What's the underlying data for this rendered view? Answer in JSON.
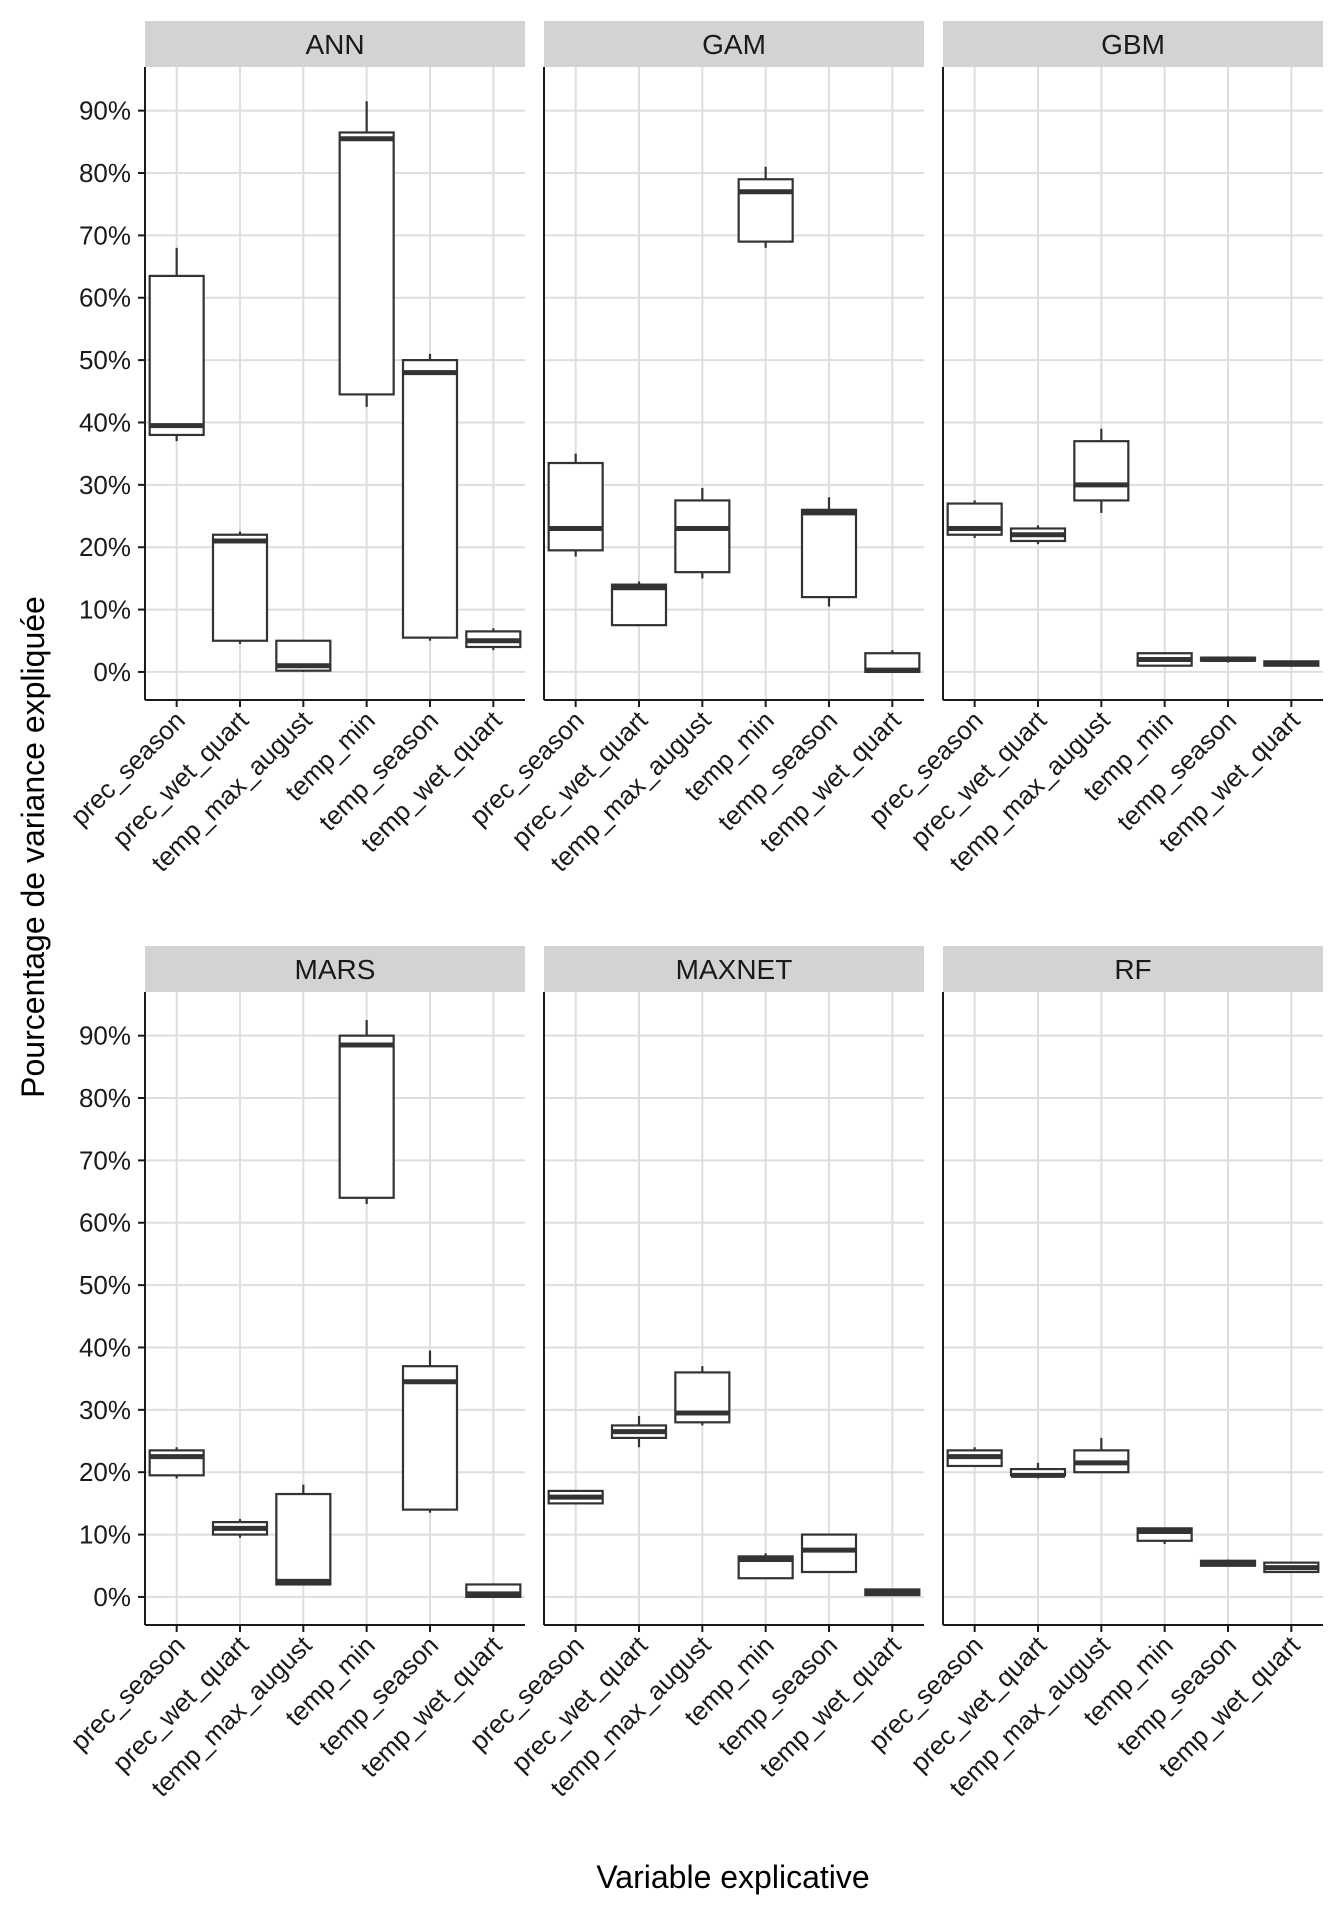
{
  "chart_data": {
    "type": "boxplot",
    "xlabel": "Variable explicative",
    "ylabel": "Pourcentage de variance expliquée",
    "ylim": [
      -4.5,
      97
    ],
    "y_ticks": [
      0,
      10,
      20,
      30,
      40,
      50,
      60,
      70,
      80,
      90
    ],
    "y_tick_labels": [
      "0%",
      "10%",
      "20%",
      "30%",
      "40%",
      "50%",
      "60%",
      "70%",
      "80%",
      "90%"
    ],
    "categories": [
      "prec_season",
      "prec_wet_quart",
      "temp_max_august",
      "temp_min",
      "temp_season",
      "temp_wet_quart"
    ],
    "panels": [
      {
        "name": "ANN",
        "boxes": [
          {
            "min": 37.0,
            "q1": 38.0,
            "median": 39.5,
            "q3": 63.5,
            "max": 68.0
          },
          {
            "min": 4.5,
            "q1": 5.0,
            "median": 21.0,
            "q3": 22.0,
            "max": 22.5
          },
          {
            "min": 0.0,
            "q1": 0.2,
            "median": 1.0,
            "q3": 5.0,
            "max": 5.0
          },
          {
            "min": 42.5,
            "q1": 44.5,
            "median": 85.5,
            "q3": 86.5,
            "max": 91.5
          },
          {
            "min": 5.0,
            "q1": 5.5,
            "median": 48.0,
            "q3": 50.0,
            "max": 51.0
          },
          {
            "min": 3.5,
            "q1": 4.0,
            "median": 5.0,
            "q3": 6.5,
            "max": 7.0
          }
        ]
      },
      {
        "name": "GAM",
        "boxes": [
          {
            "min": 18.5,
            "q1": 19.5,
            "median": 23.0,
            "q3": 33.5,
            "max": 35.0
          },
          {
            "min": 7.5,
            "q1": 7.5,
            "median": 13.5,
            "q3": 14.0,
            "max": 14.5
          },
          {
            "min": 15.0,
            "q1": 16.0,
            "median": 23.0,
            "q3": 27.5,
            "max": 29.5
          },
          {
            "min": 68.0,
            "q1": 69.0,
            "median": 77.0,
            "q3": 79.0,
            "max": 81.0
          },
          {
            "min": 10.5,
            "q1": 12.0,
            "median": 25.5,
            "q3": 26.0,
            "max": 28.0
          },
          {
            "min": 0.0,
            "q1": 0.0,
            "median": 0.3,
            "q3": 3.0,
            "max": 3.5
          }
        ]
      },
      {
        "name": "GBM",
        "boxes": [
          {
            "min": 21.5,
            "q1": 22.0,
            "median": 23.0,
            "q3": 27.0,
            "max": 27.5
          },
          {
            "min": 20.5,
            "q1": 21.0,
            "median": 22.0,
            "q3": 23.0,
            "max": 23.5
          },
          {
            "min": 25.5,
            "q1": 27.5,
            "median": 30.0,
            "q3": 37.0,
            "max": 39.0
          },
          {
            "min": 1.0,
            "q1": 1.0,
            "median": 2.0,
            "q3": 3.0,
            "max": 3.0
          },
          {
            "min": 1.5,
            "q1": 1.8,
            "median": 2.0,
            "q3": 2.3,
            "max": 2.5
          },
          {
            "min": 0.8,
            "q1": 1.0,
            "median": 1.3,
            "q3": 1.7,
            "max": 1.8
          }
        ]
      },
      {
        "name": "MARS",
        "boxes": [
          {
            "min": 19.0,
            "q1": 19.5,
            "median": 22.5,
            "q3": 23.5,
            "max": 24.0
          },
          {
            "min": 9.5,
            "q1": 10.0,
            "median": 11.0,
            "q3": 12.0,
            "max": 12.5
          },
          {
            "min": 2.0,
            "q1": 2.0,
            "median": 2.5,
            "q3": 16.5,
            "max": 18.0
          },
          {
            "min": 63.0,
            "q1": 64.0,
            "median": 88.5,
            "q3": 90.0,
            "max": 92.5
          },
          {
            "min": 13.5,
            "q1": 14.0,
            "median": 34.5,
            "q3": 37.0,
            "max": 39.5
          },
          {
            "min": 0.0,
            "q1": 0.0,
            "median": 0.5,
            "q3": 2.0,
            "max": 2.0
          }
        ]
      },
      {
        "name": "MAXNET",
        "boxes": [
          {
            "min": 15.0,
            "q1": 15.0,
            "median": 16.0,
            "q3": 17.0,
            "max": 17.0
          },
          {
            "min": 24.0,
            "q1": 25.5,
            "median": 26.5,
            "q3": 27.5,
            "max": 29.0
          },
          {
            "min": 27.5,
            "q1": 28.0,
            "median": 29.5,
            "q3": 36.0,
            "max": 37.0
          },
          {
            "min": 3.0,
            "q1": 3.0,
            "median": 6.0,
            "q3": 6.5,
            "max": 7.0
          },
          {
            "min": 4.0,
            "q1": 4.0,
            "median": 7.5,
            "q3": 10.0,
            "max": 10.0
          },
          {
            "min": 0.2,
            "q1": 0.3,
            "median": 0.7,
            "q3": 1.2,
            "max": 1.3
          }
        ]
      },
      {
        "name": "RF",
        "boxes": [
          {
            "min": 21.0,
            "q1": 21.0,
            "median": 22.5,
            "q3": 23.5,
            "max": 24.0
          },
          {
            "min": 19.0,
            "q1": 19.5,
            "median": 19.5,
            "q3": 20.5,
            "max": 21.5
          },
          {
            "min": 20.0,
            "q1": 20.0,
            "median": 21.5,
            "q3": 23.5,
            "max": 25.5
          },
          {
            "min": 8.5,
            "q1": 9.0,
            "median": 10.5,
            "q3": 11.0,
            "max": 11.0
          },
          {
            "min": 5.0,
            "q1": 5.0,
            "median": 5.3,
            "q3": 5.8,
            "max": 6.0
          },
          {
            "min": 4.0,
            "q1": 4.0,
            "median": 4.7,
            "q3": 5.5,
            "max": 5.5
          }
        ]
      }
    ]
  }
}
